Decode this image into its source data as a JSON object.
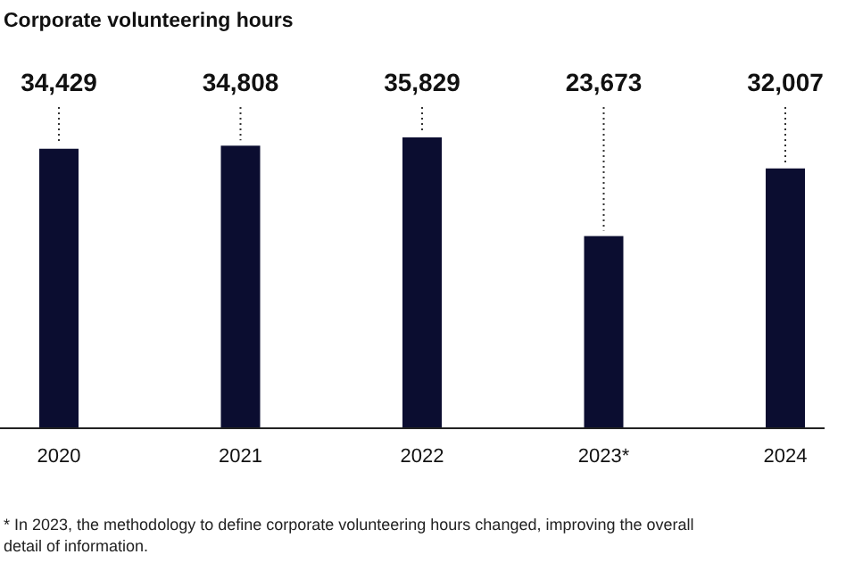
{
  "chart_data": {
    "type": "bar",
    "title": "Corporate volunteering hours",
    "categories": [
      "2020",
      "2021",
      "2022",
      "2023*",
      "2024"
    ],
    "values": [
      34429,
      34808,
      35829,
      23673,
      32007
    ],
    "value_labels": [
      "34,429",
      "34,808",
      "35,829",
      "23,673",
      "32,007"
    ],
    "color": "#0b0d30",
    "annotations": [
      "* In 2023, the methodology to define corporate volunteering hours changed, improving the overall detail of information."
    ]
  }
}
